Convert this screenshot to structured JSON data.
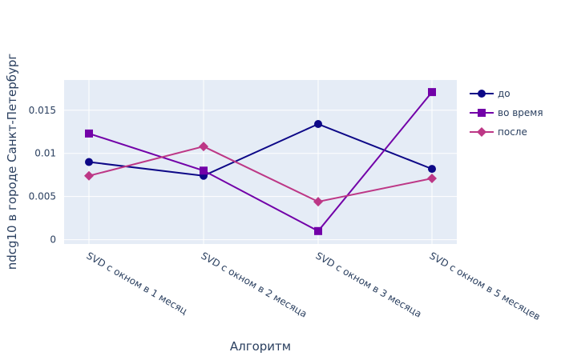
{
  "chart_data": {
    "type": "line",
    "title": "",
    "xlabel": "Алгоритм",
    "ylabel": "ndcg10 в городе Санкт-Петербург",
    "categories": [
      "SVD с окном в 1 месяц",
      "SVD с окном в 2 месяца",
      "SVD с окном в 3 месяца",
      "SVD с окном в 5 месяцев"
    ],
    "ylim": [
      -0.0005,
      0.0185
    ],
    "yticks": [
      0,
      0.005,
      0.01,
      0.015
    ],
    "ytick_labels": [
      "0",
      "0.005",
      "0.01",
      "0.015"
    ],
    "grid": true,
    "legend_position": "top-right",
    "series": [
      {
        "name": "до",
        "values": [
          0.009,
          0.0074,
          0.0134,
          0.0082
        ],
        "color": "#0d0887",
        "marker": "circle"
      },
      {
        "name": "во время",
        "values": [
          0.0123,
          0.008,
          0.001,
          0.0171
        ],
        "color": "#7201a8",
        "marker": "square"
      },
      {
        "name": "после",
        "values": [
          0.0074,
          0.0108,
          0.0044,
          0.0071
        ],
        "color": "#bd3786",
        "marker": "diamond"
      }
    ]
  }
}
